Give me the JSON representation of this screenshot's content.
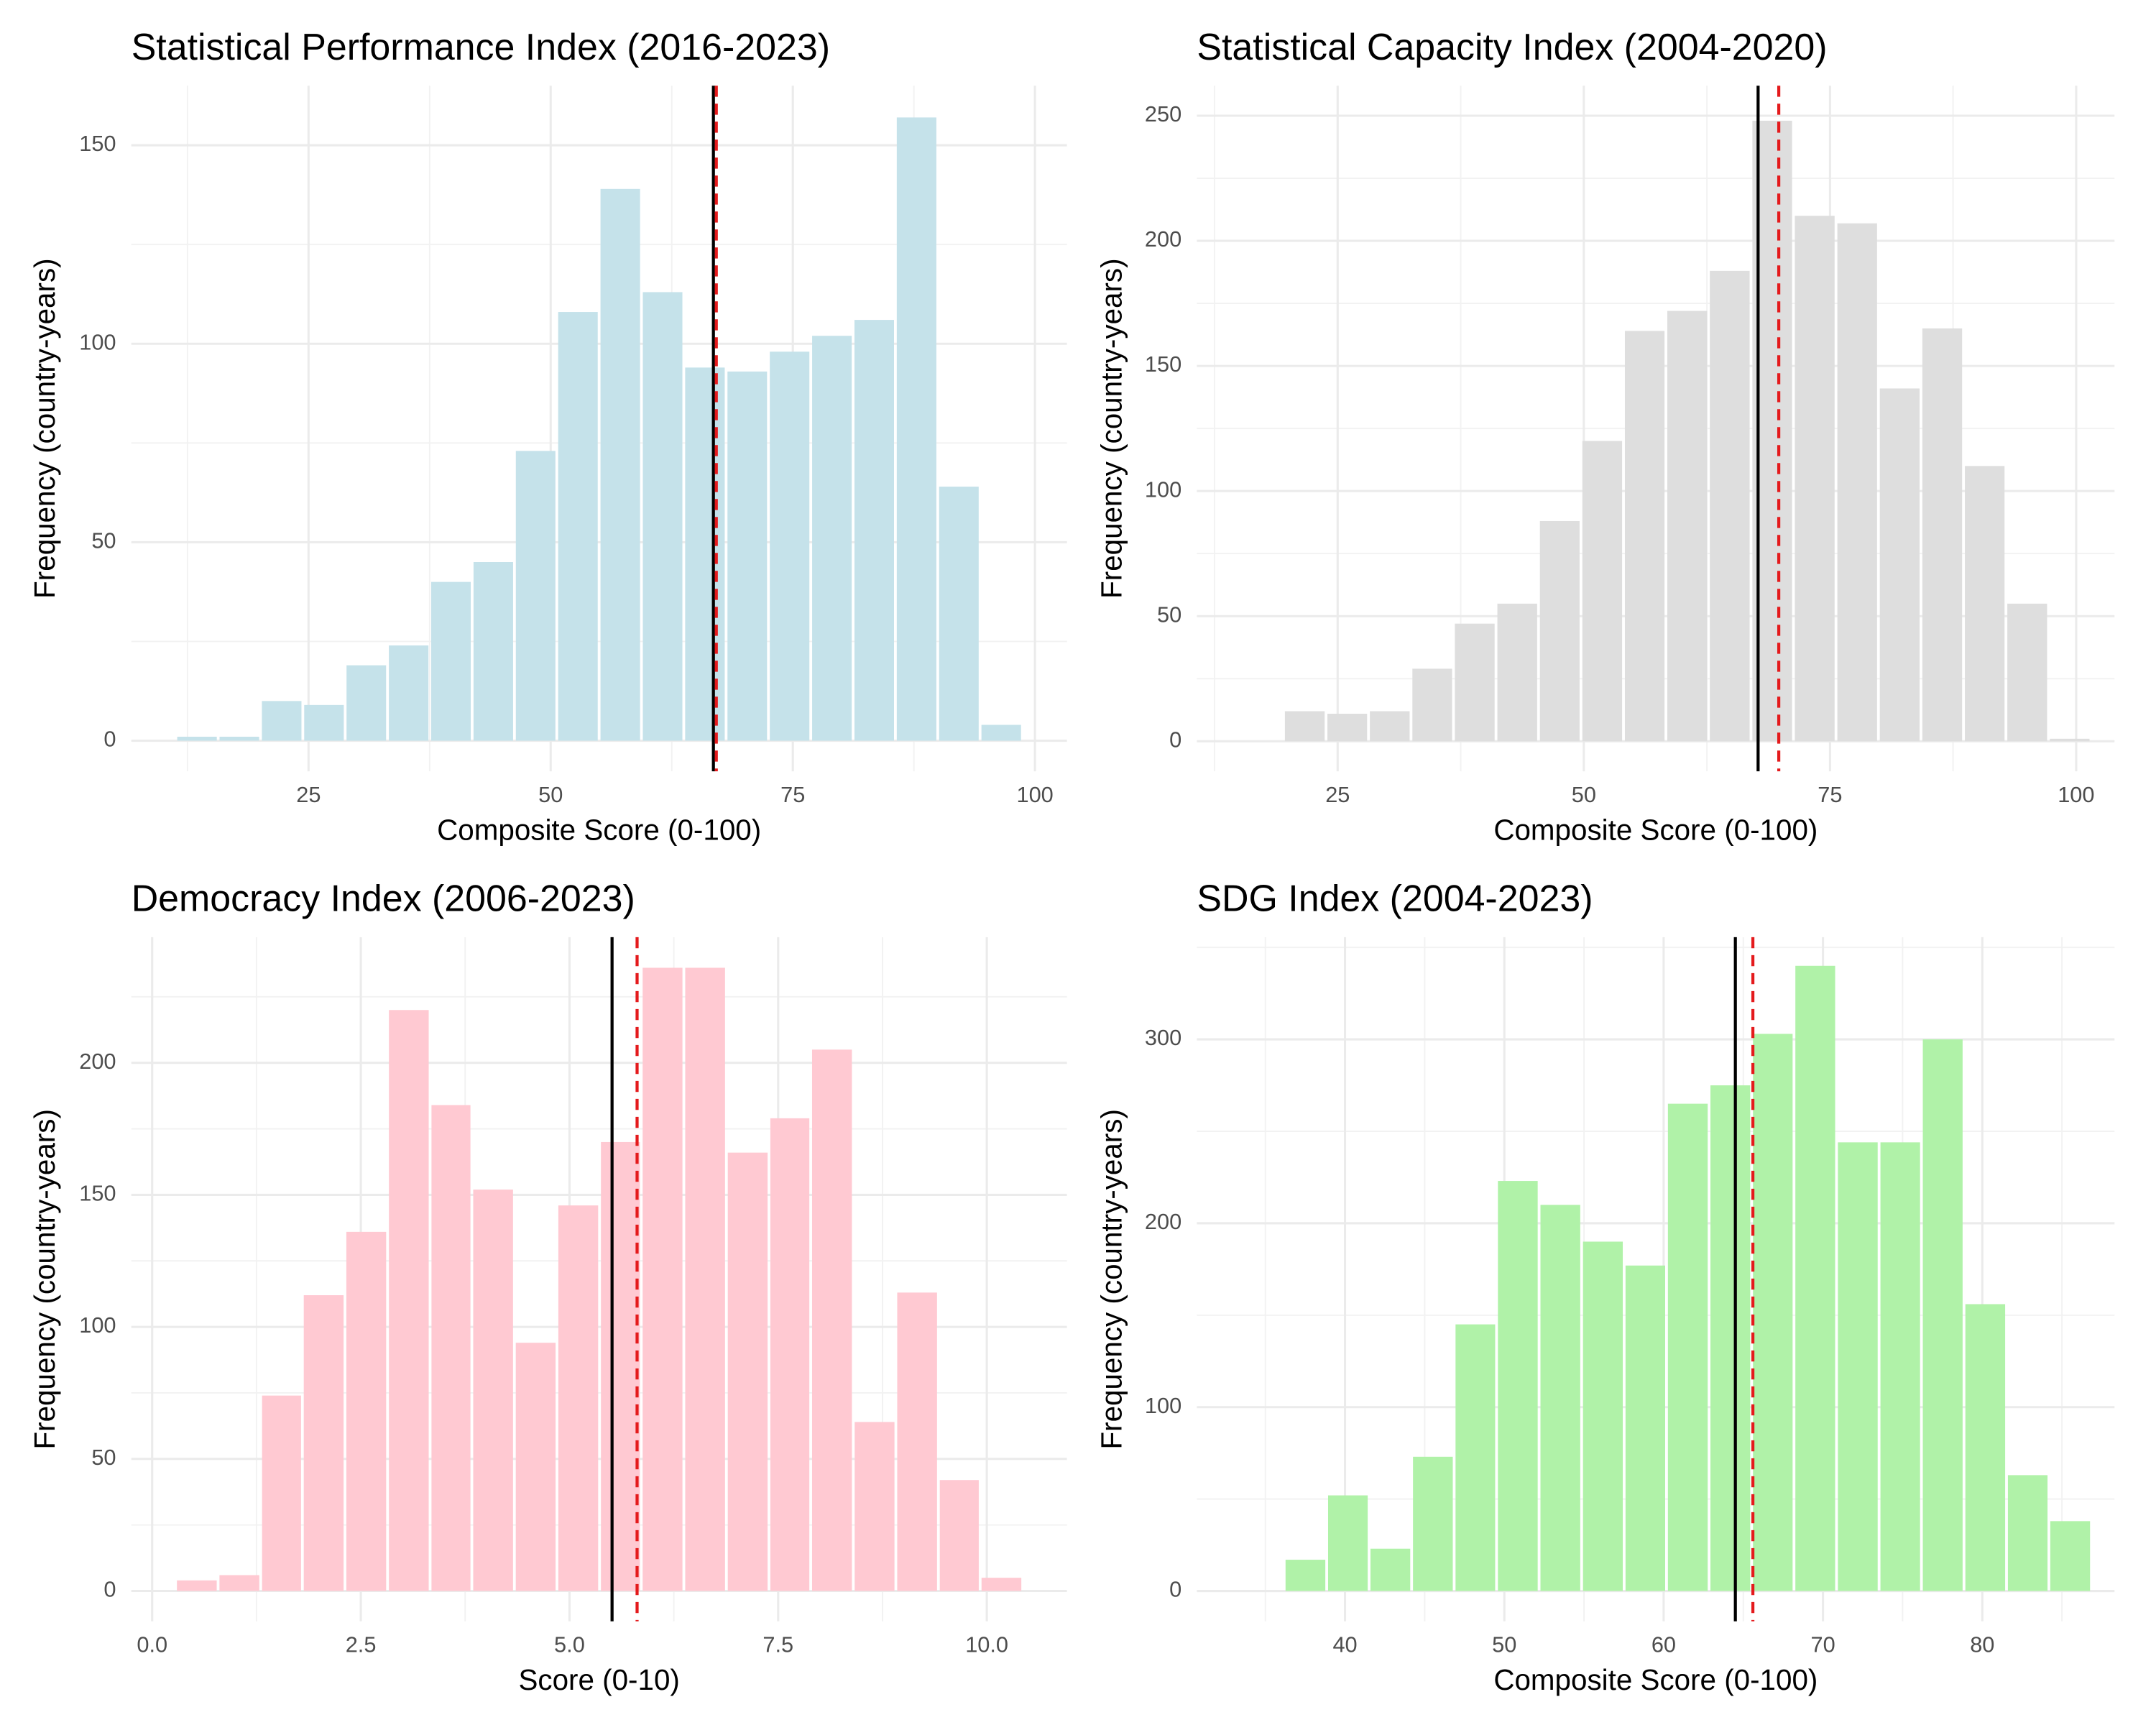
{
  "chart_data": [
    {
      "type": "histogram",
      "title": "Statistical Performance Index (2016-2023)",
      "xlabel": "Composite Score (0-100)",
      "ylabel": "Frequency (country-years)",
      "bins": [
        11.3,
        15.67,
        20.04,
        24.41,
        28.78,
        33.15,
        37.52,
        41.89,
        46.26,
        50.63,
        55.0,
        59.37,
        63.74,
        68.11,
        72.48,
        76.85,
        81.22,
        85.59,
        89.96,
        94.33,
        98.7
      ],
      "values": [
        1,
        1,
        10,
        9,
        19,
        24,
        40,
        45,
        73,
        108,
        139,
        113,
        94,
        93,
        98,
        102,
        106,
        157,
        64,
        4
      ],
      "color": "#c5e2ea",
      "xlim": [
        6.7,
        103.3
      ],
      "ylim": [
        -7.7,
        165
      ],
      "xticks": [
        25,
        50,
        75,
        100
      ],
      "yticks": [
        0,
        50,
        100,
        150
      ],
      "grid": true,
      "vlines": [
        {
          "value": 66.8,
          "color": "#000000",
          "style": "solid"
        },
        {
          "value": 67.1,
          "color": "#e41a1c",
          "style": "dashed"
        }
      ]
    },
    {
      "type": "histogram",
      "title": "Statistical Capacity Index (2004-2020)",
      "xlabel": "Composite Score (0-100)",
      "ylabel": "Frequency (country-years)",
      "bins": [
        19.5,
        23.82,
        28.13,
        32.45,
        36.76,
        41.08,
        45.4,
        49.71,
        54.03,
        58.34,
        62.66,
        66.98,
        71.29,
        75.61,
        79.92,
        84.24,
        88.56,
        92.87,
        97.19,
        101.5
      ],
      "values": [
        12,
        11,
        12,
        29,
        47,
        55,
        88,
        120,
        164,
        172,
        188,
        248,
        210,
        207,
        141,
        165,
        110,
        55,
        1
      ],
      "color": "#dedede",
      "xlim": [
        10.7,
        103.9
      ],
      "ylim": [
        -12,
        262
      ],
      "xticks": [
        25,
        50,
        75,
        100
      ],
      "yticks": [
        0,
        50,
        100,
        150,
        200,
        250
      ],
      "grid": true,
      "vlines": [
        {
          "value": 67.7,
          "color": "#000000",
          "style": "solid"
        },
        {
          "value": 69.8,
          "color": "#e41a1c",
          "style": "dashed"
        }
      ]
    },
    {
      "type": "histogram",
      "title": "Democracy Index (2006-2023)",
      "xlabel": "Score (0-10)",
      "ylabel": "Frequency (country-years)",
      "bins": [
        0.28,
        0.79,
        1.3,
        1.8,
        2.31,
        2.82,
        3.33,
        3.83,
        4.34,
        4.85,
        5.36,
        5.86,
        6.37,
        6.88,
        7.39,
        7.89,
        8.4,
        8.91,
        9.42,
        9.92,
        10.43
      ],
      "values": [
        4,
        6,
        74,
        112,
        136,
        220,
        184,
        152,
        94,
        146,
        170,
        236,
        236,
        166,
        179,
        205,
        64,
        113,
        42,
        5
      ],
      "color": "#ffc9d2",
      "xlim": [
        -0.25,
        10.96
      ],
      "ylim": [
        -11.5,
        247.6
      ],
      "xticks": [
        {
          "value": 0,
          "label": "0.0"
        },
        2.5,
        {
          "value": 5,
          "label": "5.0"
        },
        7.5,
        {
          "value": 10,
          "label": "10.0"
        }
      ],
      "yticks": [
        0,
        50,
        100,
        150,
        200
      ],
      "grid": true,
      "vlines": [
        {
          "value": 5.51,
          "color": "#000000",
          "style": "solid"
        },
        {
          "value": 5.81,
          "color": "#e41a1c",
          "style": "dashed"
        }
      ]
    },
    {
      "type": "histogram",
      "title": "SDG Index (2004-2023)",
      "xlabel": "Composite Score (0-100)",
      "ylabel": "Frequency (country-years)",
      "bins": [
        36.18,
        38.85,
        41.51,
        44.18,
        46.85,
        49.51,
        52.18,
        54.85,
        57.52,
        60.18,
        62.85,
        65.52,
        68.18,
        70.85,
        73.52,
        76.18,
        78.85,
        81.52,
        84.18,
        86.85
      ],
      "values": [
        17,
        52,
        23,
        73,
        145,
        223,
        210,
        190,
        177,
        265,
        275,
        303,
        340,
        244,
        244,
        300,
        156,
        63,
        38
      ],
      "color": "#b0f2a8",
      "xlim": [
        30.7,
        88.3
      ],
      "ylim": [
        -16.5,
        355.6
      ],
      "xticks": [
        40,
        50,
        60,
        70,
        80
      ],
      "yticks": [
        0,
        100,
        200,
        300
      ],
      "grid": true,
      "vlines": [
        {
          "value": 64.5,
          "color": "#000000",
          "style": "solid"
        },
        {
          "value": 65.6,
          "color": "#e41a1c",
          "style": "dashed"
        }
      ]
    }
  ]
}
